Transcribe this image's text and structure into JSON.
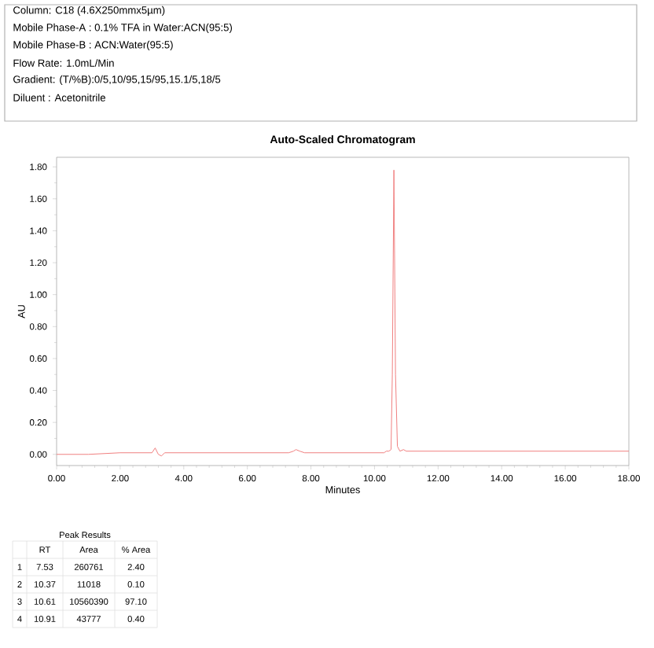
{
  "chart_data": {
    "type": "line",
    "title": "Auto-Scaled Chromatogram",
    "xlabel": "Minutes",
    "ylabel": "AU",
    "x": [
      0,
      1,
      2,
      3.0,
      3.1,
      3.2,
      3.3,
      3.4,
      5,
      7.3,
      7.45,
      7.53,
      7.65,
      7.8,
      10.3,
      10.37,
      10.45,
      10.52,
      10.56,
      10.61,
      10.66,
      10.72,
      10.8,
      10.91,
      11.0,
      12.7,
      14,
      16,
      18
    ],
    "series": [
      {
        "color": "#f08080",
        "values": [
          0,
          0,
          0.01,
          0.01,
          0.04,
          0.0,
          -0.01,
          0.01,
          0.01,
          0.01,
          0.02,
          0.03,
          0.02,
          0.01,
          0.01,
          0.02,
          0.02,
          0.03,
          0.5,
          1.78,
          0.5,
          0.05,
          0.02,
          0.03,
          0.02,
          0.02,
          0.02,
          0.02,
          0.02
        ]
      }
    ],
    "xlim": [
      0,
      18
    ],
    "ylim": [
      -0.07,
      1.86
    ],
    "xticks": [
      {
        "value": 0,
        "label": "0.00"
      },
      {
        "value": 2,
        "label": "2.00"
      },
      {
        "value": 4,
        "label": "4.00"
      },
      {
        "value": 6,
        "label": "6.00"
      },
      {
        "value": 8,
        "label": "8.00"
      },
      {
        "value": 10,
        "label": "10.00"
      },
      {
        "value": 12,
        "label": "12.00"
      },
      {
        "value": 14,
        "label": "14.00"
      },
      {
        "value": 16,
        "label": "16.00"
      },
      {
        "value": 18,
        "label": "18.00"
      }
    ],
    "yticks": [
      {
        "value": 0,
        "label": "0.00"
      },
      {
        "value": 0.2,
        "label": "0.20"
      },
      {
        "value": 0.4,
        "label": "0.40"
      },
      {
        "value": 0.6,
        "label": "0.60"
      },
      {
        "value": 0.8,
        "label": "0.80"
      },
      {
        "value": 1.0,
        "label": "1.00"
      },
      {
        "value": 1.2,
        "label": "1.20"
      },
      {
        "value": 1.4,
        "label": "1.40"
      },
      {
        "value": 1.6,
        "label": "1.60"
      },
      {
        "value": 1.8,
        "label": "1.80"
      }
    ],
    "grid": false,
    "marker": "none",
    "line_style": "solid",
    "annotations": [
      "Column: C18 (4.6X250mmx5µm)",
      "Mobile Phase-A : 0.1% TFA  in Water:ACN(95:5)",
      "Mobile Phase-B : ACN:Water(95:5)",
      "Flow Rate: 1.0mL/Min",
      "Gradient: (T/%B):0/5,10/95,15/95,15.1/5,18/5",
      "Diluent : Acetonitrile",
      "Peak Results",
      "RT",
      "Area",
      "% Area",
      "1",
      "7.53",
      "260761",
      "2.40",
      "2",
      "10.37",
      "11018",
      "0.10",
      "3",
      "10.61",
      "10560390",
      "97.10",
      "4",
      "10.91",
      "43777",
      "0.40"
    ]
  }
}
